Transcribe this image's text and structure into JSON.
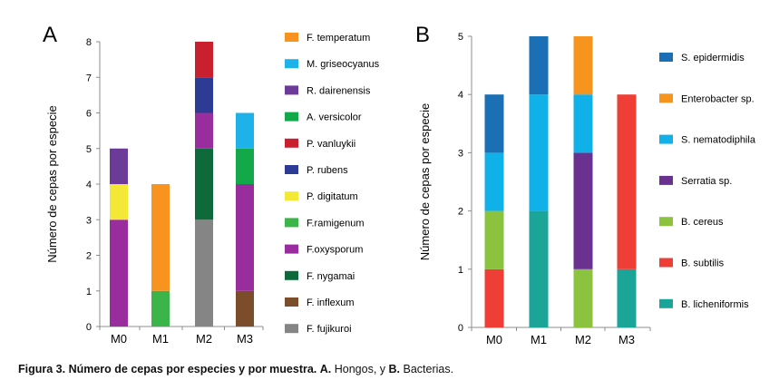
{
  "caption": {
    "lead": "Figura 3. Número de cepas por especies y por muestra.",
    "a_letter": "A.",
    "a_text": " Hongos, y ",
    "b_letter": "B.",
    "b_text": " Bacterias."
  },
  "chart_data": [
    {
      "type": "bar",
      "stacked": true,
      "panel": "A",
      "ylabel": "Número de cepas por especie",
      "ylim": [
        0,
        8
      ],
      "yticks": [
        0,
        1,
        2,
        3,
        4,
        5,
        6,
        7,
        8
      ],
      "categories": [
        "M0",
        "M1",
        "M2",
        "M3"
      ],
      "legend_position": "right",
      "series": [
        {
          "name": "F. fujikuroi",
          "color": "#858585",
          "values": [
            0,
            0,
            3,
            0
          ]
        },
        {
          "name": "F. inflexum",
          "color": "#7b4d2a",
          "values": [
            0,
            0,
            0,
            1
          ]
        },
        {
          "name": "F. nygamai",
          "color": "#0e6a3a",
          "values": [
            0,
            0,
            2,
            0
          ]
        },
        {
          "name": "F.oxysporum",
          "color": "#992d9e",
          "values": [
            3,
            0,
            1,
            3
          ]
        },
        {
          "name": "F.ramigenum",
          "color": "#3bb54a",
          "values": [
            0,
            1,
            0,
            0
          ]
        },
        {
          "name": "P. digitatum",
          "color": "#f4e836",
          "values": [
            1,
            0,
            0,
            0
          ]
        },
        {
          "name": "P. rubens",
          "color": "#2e3b94",
          "values": [
            0,
            0,
            1,
            0
          ]
        },
        {
          "name": "P. vanluykii",
          "color": "#c8202f",
          "values": [
            0,
            0,
            1,
            0
          ]
        },
        {
          "name": "A. versicolor",
          "color": "#13a84a",
          "values": [
            0,
            0,
            0,
            1
          ]
        },
        {
          "name": "R. dairenensis",
          "color": "#6c3a99",
          "values": [
            1,
            0,
            0,
            0
          ]
        },
        {
          "name": "M. griseocyanus",
          "color": "#1fb2ea",
          "values": [
            0,
            0,
            0,
            1
          ]
        },
        {
          "name": "F. temperatum",
          "color": "#f7931e",
          "values": [
            0,
            3,
            0,
            0
          ]
        }
      ]
    },
    {
      "type": "bar",
      "stacked": true,
      "panel": "B",
      "ylabel": "Número de cepas por especie",
      "ylim": [
        0,
        5
      ],
      "yticks": [
        0,
        1,
        2,
        3,
        4,
        5
      ],
      "categories": [
        "M0",
        "M1",
        "M2",
        "M3"
      ],
      "legend_position": "right",
      "series": [
        {
          "name": "B. licheniformis",
          "color": "#1aa598",
          "values": [
            0,
            2,
            0,
            1
          ]
        },
        {
          "name": "B. subtilis",
          "color": "#ee3e36",
          "values": [
            1,
            0,
            0,
            3
          ]
        },
        {
          "name": "B. cereus",
          "color": "#8bc33f",
          "values": [
            1,
            0,
            1,
            0
          ]
        },
        {
          "name": "Serratia sp.",
          "color": "#6a3190",
          "values": [
            0,
            0,
            2,
            0
          ]
        },
        {
          "name": "S. nematodiphila",
          "color": "#10b1e8",
          "values": [
            1,
            2,
            1,
            0
          ]
        },
        {
          "name": "Enterobacter sp.",
          "color": "#f7941d",
          "values": [
            0,
            0,
            1,
            0
          ]
        },
        {
          "name": "S. epidermidis",
          "color": "#1b6fb5",
          "values": [
            1,
            1,
            0,
            0
          ]
        }
      ]
    }
  ]
}
